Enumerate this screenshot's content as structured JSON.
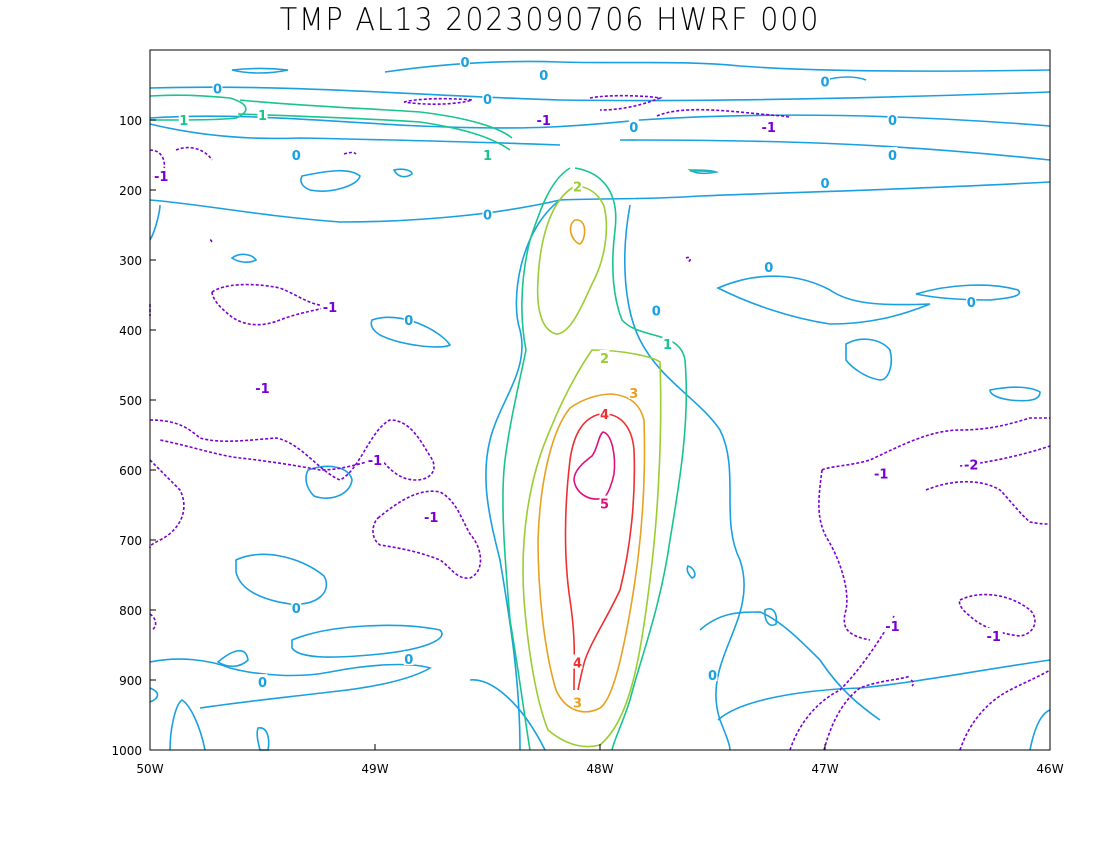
{
  "chart_data": {
    "type": "contour",
    "title": "TMP AL13 2023090706 HWRF 000",
    "x_ticks": [
      "50W",
      "49W",
      "48W",
      "47W",
      "46W"
    ],
    "x_range": [
      -50,
      -46
    ],
    "y_ticks": [
      "100",
      "200",
      "300",
      "400",
      "500",
      "600",
      "700",
      "800",
      "900",
      "1000"
    ],
    "y_range": [
      0,
      1000
    ],
    "y_inverted": true,
    "contour_levels": [
      {
        "level": -2,
        "color": "#7b00d4",
        "dashed": true
      },
      {
        "level": -1,
        "color": "#7b00d4",
        "dashed": true
      },
      {
        "level": 0,
        "color": "#1aa0e0",
        "dashed": false
      },
      {
        "level": 1,
        "color": "#19c48e",
        "dashed": false
      },
      {
        "level": 2,
        "color": "#9acd32",
        "dashed": false
      },
      {
        "level": 3,
        "color": "#e8a020",
        "dashed": false
      },
      {
        "level": 4,
        "color": "#ee3030",
        "dashed": false
      },
      {
        "level": 5,
        "color": "#e0107a",
        "dashed": false
      }
    ],
    "contour_labels": [
      {
        "text": "0",
        "lon": -48.6,
        "p": 17
      },
      {
        "text": "0",
        "lon": -48.25,
        "p": 36
      },
      {
        "text": "0",
        "lon": -49.7,
        "p": 55
      },
      {
        "text": "0",
        "lon": -48.5,
        "p": 70
      },
      {
        "text": "0",
        "lon": -47.0,
        "p": 45
      },
      {
        "text": "0",
        "lon": -49.35,
        "p": 150
      },
      {
        "text": "0",
        "lon": -47.85,
        "p": 110
      },
      {
        "text": "0",
        "lon": -46.7,
        "p": 100
      },
      {
        "text": "0",
        "lon": -46.7,
        "p": 150
      },
      {
        "text": "0",
        "lon": -47.0,
        "p": 190
      },
      {
        "text": "0",
        "lon": -48.5,
        "p": 235
      },
      {
        "text": "0",
        "lon": -47.25,
        "p": 310
      },
      {
        "text": "0",
        "lon": -46.35,
        "p": 360
      },
      {
        "text": "0",
        "lon": -47.75,
        "p": 372
      },
      {
        "text": "0",
        "lon": -48.85,
        "p": 386
      },
      {
        "text": "0",
        "lon": -49.35,
        "p": 797
      },
      {
        "text": "0",
        "lon": -48.85,
        "p": 870
      },
      {
        "text": "0",
        "lon": -49.5,
        "p": 903
      },
      {
        "text": "0",
        "lon": -47.5,
        "p": 893
      },
      {
        "text": "1",
        "lon": -49.85,
        "p": 100
      },
      {
        "text": "1",
        "lon": -49.5,
        "p": 93
      },
      {
        "text": "1",
        "lon": -48.5,
        "p": 150
      },
      {
        "text": "1",
        "lon": -47.7,
        "p": 420
      },
      {
        "text": "2",
        "lon": -48.1,
        "p": 195
      },
      {
        "text": "2",
        "lon": -47.98,
        "p": 440
      },
      {
        "text": "3",
        "lon": -47.85,
        "p": 490
      },
      {
        "text": "3",
        "lon": -48.1,
        "p": 932
      },
      {
        "text": "4",
        "lon": -47.98,
        "p": 520
      },
      {
        "text": "4",
        "lon": -48.1,
        "p": 875
      },
      {
        "text": "5",
        "lon": -47.98,
        "p": 648
      },
      {
        "text": "-1",
        "lon": -48.25,
        "p": 100
      },
      {
        "text": "-1",
        "lon": -47.25,
        "p": 110
      },
      {
        "text": "-1",
        "lon": -49.95,
        "p": 180
      },
      {
        "text": "-1",
        "lon": -49.2,
        "p": 367
      },
      {
        "text": "-1",
        "lon": -49.5,
        "p": 483
      },
      {
        "text": "-1",
        "lon": -49.0,
        "p": 586
      },
      {
        "text": "-1",
        "lon": -48.75,
        "p": 667
      },
      {
        "text": "-1",
        "lon": -46.75,
        "p": 605
      },
      {
        "text": "-1",
        "lon": -46.7,
        "p": 823
      },
      {
        "text": "-1",
        "lon": -46.25,
        "p": 837
      },
      {
        "text": "-2",
        "lon": -46.35,
        "p": 592
      }
    ]
  }
}
